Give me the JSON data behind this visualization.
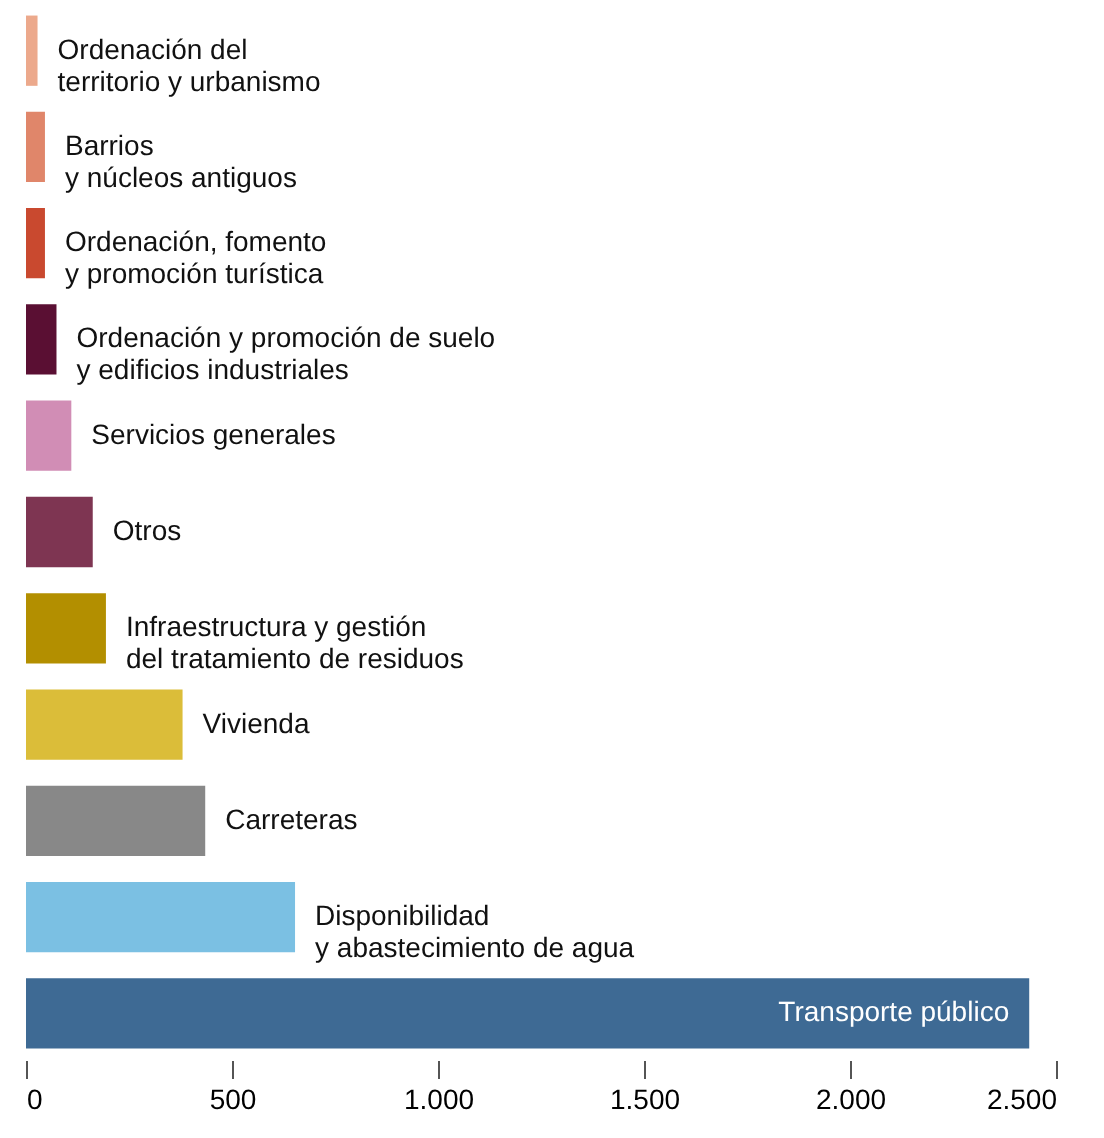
{
  "chart_data": {
    "type": "bar",
    "orientation": "horizontal",
    "categories": [
      "Ordenación del\nterritorio y urbanismo",
      "Barrios\ny núcleos antiguos",
      "Ordenación, fomento\ny promoción turística",
      "Ordenación y promoción de suelo\ny edificios industriales",
      "Servicios generales",
      "Otros",
      "Infraestructura y gestión\ndel tratamiento de residuos",
      "Vivienda",
      "Carreteras",
      "Disponibilidad\ny abastecimiento de agua",
      "Transporte público"
    ],
    "values": [
      28,
      46,
      46,
      74,
      110,
      162,
      194,
      380,
      435,
      653,
      2435
    ],
    "colors": [
      "#eca98c",
      "#e0866a",
      "#c9492f",
      "#5a0f33",
      "#d18db5",
      "#7e3552",
      "#b38f00",
      "#dbbd39",
      "#888888",
      "#7bc0e3",
      "#3e6a94"
    ],
    "xlim": [
      0,
      2500
    ],
    "xticks": [
      0,
      500,
      {
        "value": 1000,
        "label": "1.000"
      },
      {
        "value": 1500,
        "label": "1.500"
      },
      {
        "value": 2000,
        "label": "2.000"
      },
      {
        "value": 2500,
        "label": "2.500"
      }
    ],
    "grid": false
  }
}
